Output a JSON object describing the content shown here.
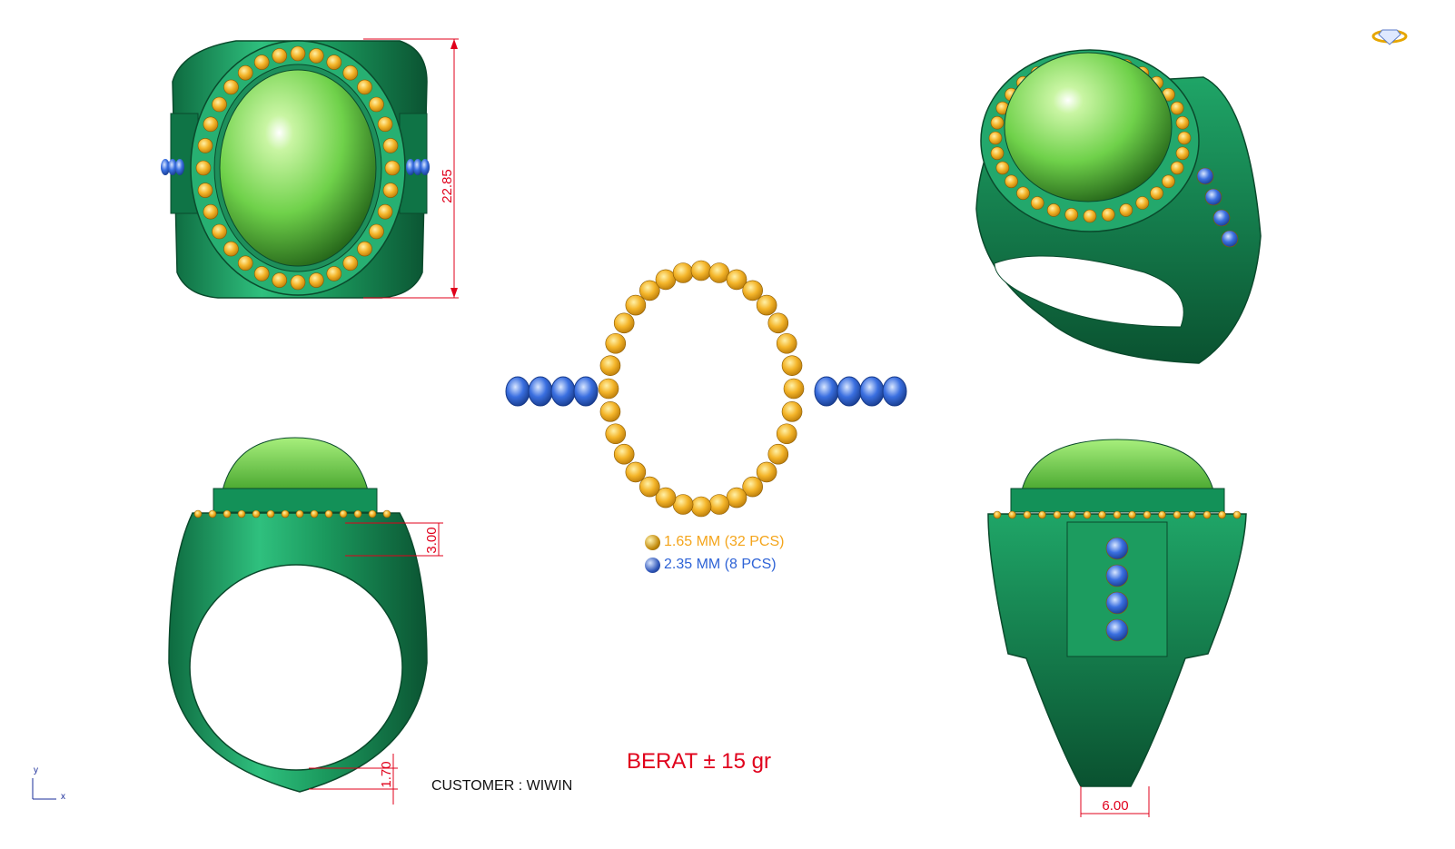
{
  "dimensions": {
    "height": "22.85",
    "shoulder": "3.00",
    "shank_bottom": "1.70",
    "band_width": "6.00"
  },
  "legend": [
    {
      "label": "1.65 MM (32 PCS)",
      "color": "#f4a51c"
    },
    {
      "label": "2.35 MM (8 PCS)",
      "color": "#2e63d6"
    }
  ],
  "weight": "BERAT ± 15 gr",
  "customer": "CUSTOMER : WIWIN",
  "axes": {
    "y": "y",
    "x": "x"
  },
  "stones": {
    "gold_count": 32,
    "blue_count": 8
  },
  "colors": {
    "metal": "#1f9a63",
    "metal_dark": "#0b5a36",
    "cabochon": "#7ddc52",
    "gold_stone": "#f4b52a",
    "blue_stone": "#2e63d6",
    "dimension": "#e0001b"
  },
  "icons": [
    "ring-logo-icon"
  ]
}
